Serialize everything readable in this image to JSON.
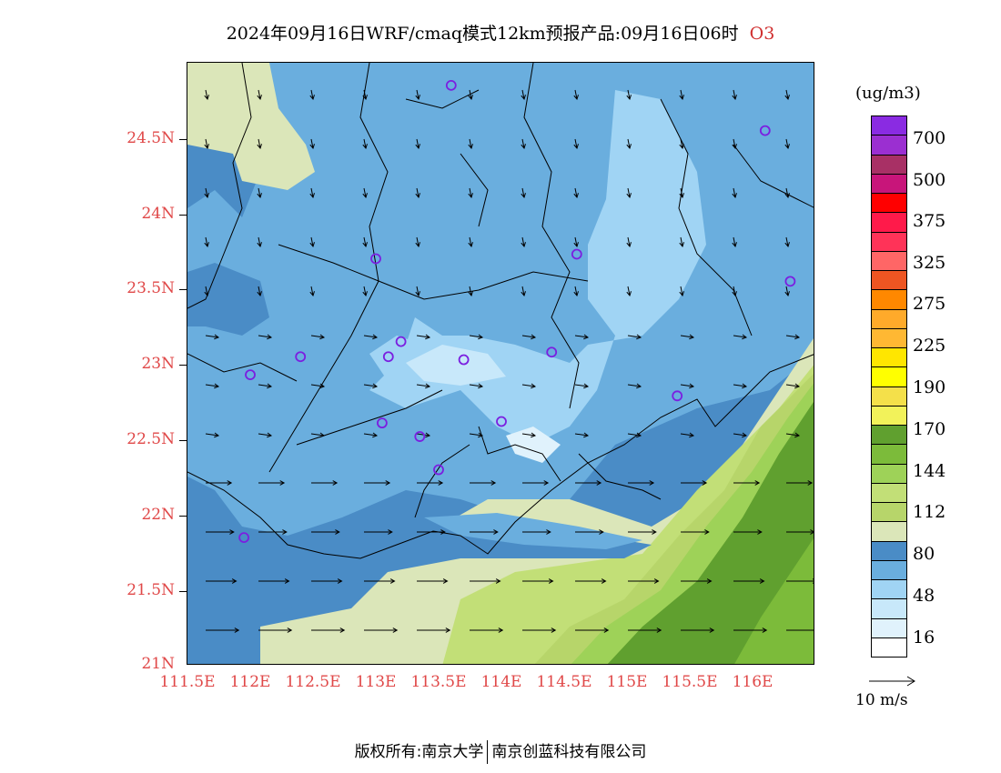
{
  "title": {
    "text": "2024年09月16日WRF/cmaq模式12km预报产品:09月16日06时",
    "variable": "O3"
  },
  "map": {
    "lat_labels": [
      "24.5N",
      "24N",
      "23.5N",
      "23N",
      "22.5N",
      "22N",
      "21.5N",
      "21N"
    ],
    "lon_labels": [
      "111.5E",
      "112E",
      "112.5E",
      "113E",
      "113.5E",
      "114E",
      "114.5E",
      "115E",
      "115.5E",
      "116E"
    ]
  },
  "legend": {
    "unit": "(ug/m3)",
    "swatch_colors": [
      "#8a2be2",
      "#9b2fd1",
      "#a83065",
      "#c8157a",
      "#ff0000",
      "#ff1a4a",
      "#ff3358",
      "#ff6666",
      "#ee5522",
      "#ff8800",
      "#ffaa2a",
      "#ffb833",
      "#ffe600",
      "#ffff00",
      "#f4e04a",
      "#f2f25a",
      "#60a02f",
      "#7cbb3a",
      "#9ed258",
      "#c2df77",
      "#b7d56a",
      "#dbe6b9",
      "#4a8cc6",
      "#6aaede",
      "#a0d4f4",
      "#c8e8fa",
      "#e0f2fc",
      "#ffffff"
    ],
    "labels": [
      "700",
      "500",
      "375",
      "325",
      "275",
      "225",
      "190",
      "170",
      "144",
      "112",
      "80",
      "48",
      "16"
    ],
    "wind_reference": "10 m/s"
  },
  "markers": [
    {
      "lon": 113.6,
      "lat": 24.85
    },
    {
      "lon": 116.1,
      "lat": 24.55
    },
    {
      "lon": 113.0,
      "lat": 23.7
    },
    {
      "lon": 114.6,
      "lat": 23.73
    },
    {
      "lon": 116.3,
      "lat": 23.55
    },
    {
      "lon": 112.4,
      "lat": 23.05
    },
    {
      "lon": 113.1,
      "lat": 23.05
    },
    {
      "lon": 113.2,
      "lat": 23.15
    },
    {
      "lon": 113.7,
      "lat": 23.03
    },
    {
      "lon": 114.4,
      "lat": 23.08
    },
    {
      "lon": 112.0,
      "lat": 22.93
    },
    {
      "lon": 115.4,
      "lat": 22.79
    },
    {
      "lon": 113.05,
      "lat": 22.61
    },
    {
      "lon": 113.35,
      "lat": 22.52
    },
    {
      "lon": 114.0,
      "lat": 22.62
    },
    {
      "lon": 113.5,
      "lat": 22.3
    },
    {
      "lon": 111.95,
      "lat": 21.85
    }
  ],
  "copyright": {
    "left": "版权所有:南京大学",
    "right": "南京创蓝科技有限公司"
  }
}
